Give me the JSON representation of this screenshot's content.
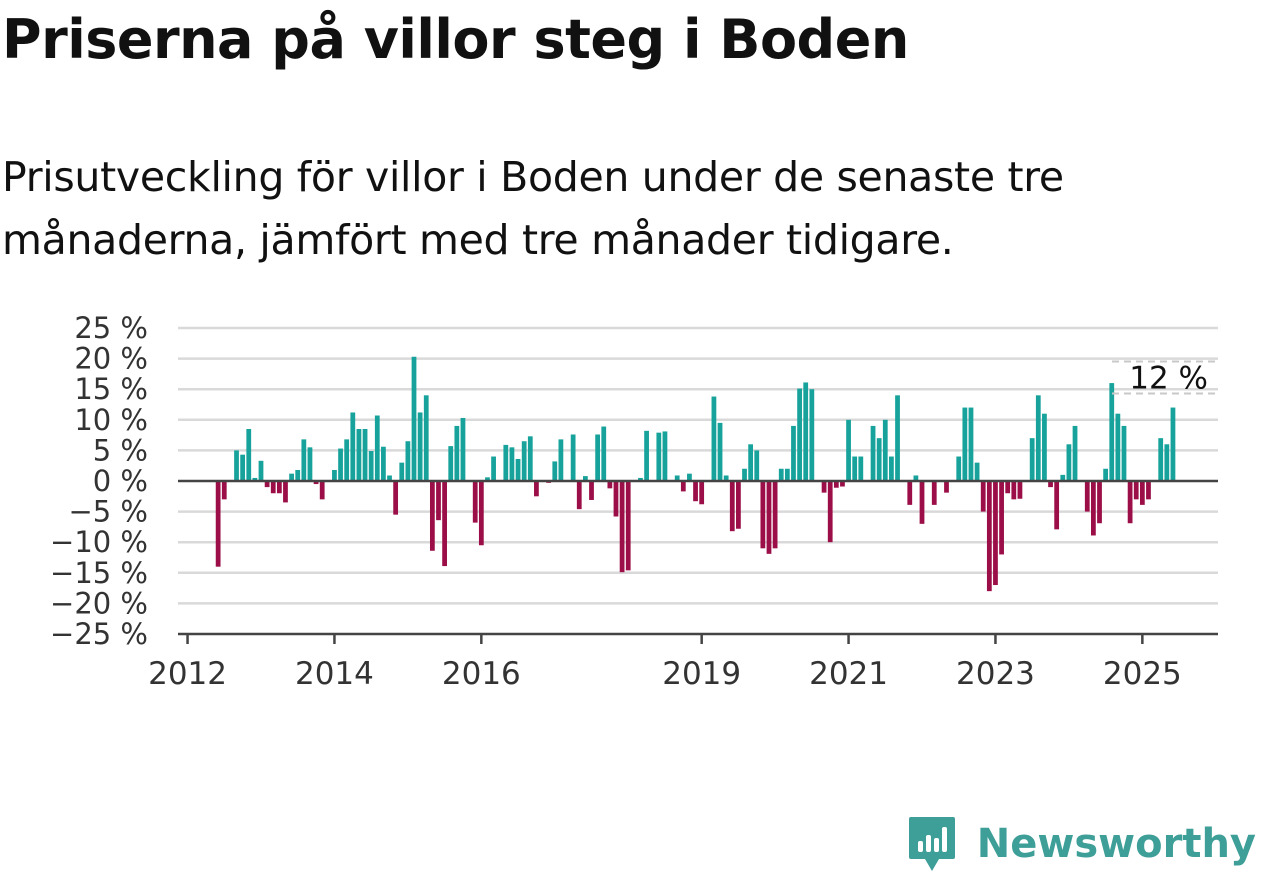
{
  "header": {
    "title": "Priserna på villor steg i Boden",
    "subtitle": "Prisutveckling för villor i Boden under de senaste tre månaderna, jämfört med tre månader tidigare."
  },
  "brand": {
    "name": "Newsworthy",
    "icon": "newsworthy-logo-icon"
  },
  "colors": {
    "positive": "#17a39b",
    "negative": "#9b0e47",
    "grid": "#d9d9d9",
    "axis": "#444444"
  },
  "chart_data": {
    "type": "bar",
    "title": "Priserna på villor steg i Boden",
    "unit": "%",
    "ylim": [
      -25,
      25
    ],
    "yticks": [
      25,
      20,
      15,
      10,
      5,
      0,
      -5,
      -10,
      -15,
      -20,
      -25
    ],
    "ytick_labels": [
      "25 %",
      "20 %",
      "15 %",
      "10 %",
      "5 %",
      "0 %",
      "−5 %",
      "−10 %",
      "−15 %",
      "−20 %",
      "−25 %"
    ],
    "xlim": [
      2011.87,
      2026.03
    ],
    "xticks": [
      2012,
      2014,
      2016,
      2019,
      2021,
      2023,
      2025
    ],
    "xtick_labels": [
      "2012",
      "2014",
      "2016",
      "2019",
      "2021",
      "2023",
      "2025"
    ],
    "grid": true,
    "end_label": "12 %",
    "start": "2012-06",
    "frequency": "monthly",
    "values": [
      -14,
      -3,
      0,
      5,
      4.3,
      8.5,
      0.5,
      3.3,
      -1,
      -2,
      -2,
      -3.5,
      1.2,
      1.8,
      6.8,
      5.5,
      -0.5,
      -3,
      0,
      1.8,
      5.3,
      6.8,
      11.2,
      8.5,
      8.5,
      4.9,
      10.7,
      5.6,
      0.9,
      -5.5,
      3,
      6.5,
      20.3,
      11.2,
      14,
      -11.4,
      -6.4,
      -13.9,
      5.7,
      9,
      10.3,
      0,
      -6.8,
      -10.5,
      0.6,
      4,
      0,
      5.9,
      5.5,
      3.6,
      6.5,
      7.3,
      -2.5,
      0,
      -0.3,
      3.2,
      6.8,
      0,
      7.6,
      -4.6,
      0.8,
      -3.1,
      7.6,
      8.9,
      -1.2,
      -5.8,
      -14.9,
      -14.6,
      0,
      0.5,
      8.2,
      0,
      7.9,
      8.1,
      0,
      0.9,
      -1.7,
      1.2,
      -3.3,
      -3.8,
      0,
      13.8,
      9.5,
      0.9,
      -8.2,
      -7.8,
      2,
      6,
      5,
      -11,
      -11.9,
      -11,
      2,
      2,
      9,
      15.1,
      16.1,
      15,
      0,
      -1.9,
      -10,
      -1.1,
      -0.9,
      10,
      4,
      4,
      0,
      9,
      7,
      10,
      4,
      14,
      0,
      -3.9,
      0.9,
      -7,
      0,
      -3.9,
      0,
      -1.9,
      0,
      4,
      12,
      12,
      3,
      -5,
      -18,
      -17,
      -12,
      -2,
      -3,
      -2.9,
      0,
      7,
      14,
      11,
      -1,
      -7.9,
      1,
      6,
      9,
      0,
      -5,
      -8.9,
      -6.9,
      2,
      16,
      11,
      9,
      -6.9,
      -3,
      -3.9,
      -3,
      0,
      7,
      6,
      12
    ]
  }
}
